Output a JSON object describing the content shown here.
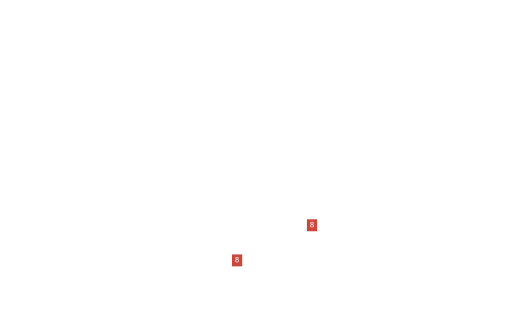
{
  "page": {
    "background_color": "#ffffff"
  },
  "badges": [
    {
      "value": "8",
      "color": "#c8483b",
      "text_color": "#ffffff"
    },
    {
      "value": "8",
      "color": "#c8483b",
      "text_color": "#ffffff"
    }
  ]
}
